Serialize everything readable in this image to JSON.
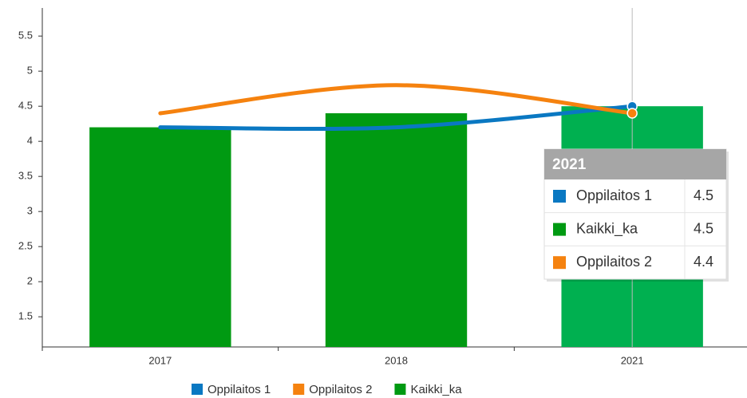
{
  "chart_data": {
    "type": "bar-line",
    "categories": [
      "2017",
      "2018",
      "2021"
    ],
    "series": [
      {
        "name": "Oppilaitos 1",
        "type": "line",
        "color": "#0a78c2",
        "values": [
          4.2,
          4.2,
          4.5
        ]
      },
      {
        "name": "Oppilaitos 2",
        "type": "line",
        "color": "#f5820f",
        "values": [
          4.4,
          4.8,
          4.4
        ]
      },
      {
        "name": "Kaikki_ka",
        "type": "bar",
        "color": "#009a12",
        "hover_color": "#00b050",
        "values": [
          4.2,
          4.4,
          4.5
        ]
      }
    ],
    "ylim": [
      1.07,
      5.9
    ],
    "yticks": [
      1.5,
      2,
      2.5,
      3,
      3.5,
      4,
      4.5,
      5,
      5.5
    ],
    "grid": false,
    "legend": "bottom"
  }
}
